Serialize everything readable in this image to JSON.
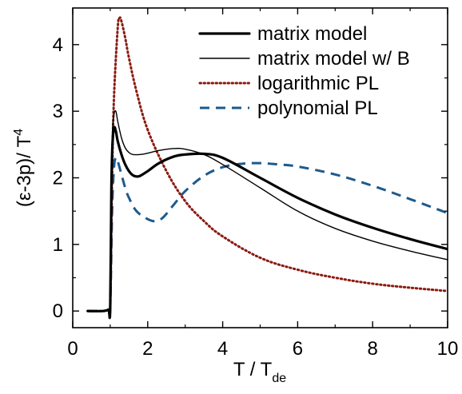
{
  "chart_data": {
    "type": "line",
    "xlabel": "T / T",
    "xlabel_sub": "de",
    "ylabel": "(ε-3p)/ T",
    "ylabel_sup": "4",
    "xlim": [
      0,
      10
    ],
    "ylim": [
      -0.25,
      4.55
    ],
    "xticks": [
      0,
      2,
      4,
      6,
      8,
      10
    ],
    "yticks": [
      0,
      1,
      2,
      3,
      4
    ],
    "grid": false,
    "legend_position": "top-right",
    "series": [
      {
        "name": "matrix model",
        "color": "#000000",
        "style": "solid-thick",
        "x": [
          0.4,
          0.8,
          0.95,
          1.0,
          1.03,
          1.06,
          1.1,
          1.15,
          1.2,
          1.3,
          1.4,
          1.5,
          1.6,
          1.7,
          1.8,
          2.0,
          2.3,
          2.7,
          3.0,
          3.5,
          4.0,
          5.0,
          6.0,
          7.0,
          8.0,
          9.0,
          10.0
        ],
        "y": [
          0,
          0,
          0.02,
          0.05,
          1.8,
          2.5,
          2.75,
          2.7,
          2.55,
          2.35,
          2.2,
          2.1,
          2.04,
          2.02,
          2.03,
          2.1,
          2.22,
          2.32,
          2.35,
          2.36,
          2.3,
          2.0,
          1.7,
          1.45,
          1.25,
          1.08,
          0.93
        ]
      },
      {
        "name": "matrix model w/ B",
        "color": "#000000",
        "style": "solid-thin",
        "x": [
          0.4,
          0.8,
          0.95,
          1.0,
          1.03,
          1.06,
          1.1,
          1.15,
          1.2,
          1.3,
          1.4,
          1.5,
          1.6,
          1.8,
          2.0,
          2.3,
          2.7,
          3.0,
          3.5,
          4.0,
          5.0,
          6.0,
          7.0,
          8.0,
          9.0,
          10.0
        ],
        "y": [
          0,
          0,
          0.02,
          0.05,
          2.0,
          2.7,
          2.95,
          3.0,
          2.85,
          2.6,
          2.45,
          2.38,
          2.35,
          2.35,
          2.37,
          2.41,
          2.44,
          2.43,
          2.35,
          2.2,
          1.85,
          1.5,
          1.24,
          1.05,
          0.9,
          0.77
        ]
      },
      {
        "name": "logarithmic PL",
        "color": "#8b1a10",
        "style": "dotted",
        "x": [
          0.4,
          0.8,
          0.95,
          1.0,
          1.05,
          1.1,
          1.2,
          1.25,
          1.3,
          1.4,
          1.5,
          1.7,
          2.0,
          2.5,
          3.0,
          3.5,
          4.0,
          5.0,
          6.0,
          7.0,
          8.0,
          9.0,
          10.0
        ],
        "y": [
          0,
          0,
          0.02,
          0.05,
          2.0,
          3.2,
          4.25,
          4.4,
          4.35,
          4.1,
          3.8,
          3.3,
          2.72,
          2.1,
          1.65,
          1.35,
          1.12,
          0.8,
          0.62,
          0.5,
          0.41,
          0.35,
          0.3
        ]
      },
      {
        "name": "polynomial PL",
        "color": "#1d5a8c",
        "style": "dashed",
        "x": [
          0.4,
          0.8,
          0.95,
          1.0,
          1.05,
          1.1,
          1.15,
          1.2,
          1.3,
          1.4,
          1.5,
          1.7,
          2.0,
          2.2,
          2.4,
          2.7,
          3.0,
          3.5,
          4.0,
          4.5,
          5.0,
          5.5,
          6.0,
          7.0,
          8.0,
          9.0,
          10.0
        ],
        "y": [
          0,
          0,
          0.02,
          0.05,
          1.5,
          2.15,
          2.3,
          2.25,
          2.05,
          1.85,
          1.7,
          1.5,
          1.38,
          1.35,
          1.4,
          1.6,
          1.8,
          2.03,
          2.16,
          2.21,
          2.22,
          2.2,
          2.17,
          2.05,
          1.88,
          1.68,
          1.47
        ]
      }
    ]
  }
}
